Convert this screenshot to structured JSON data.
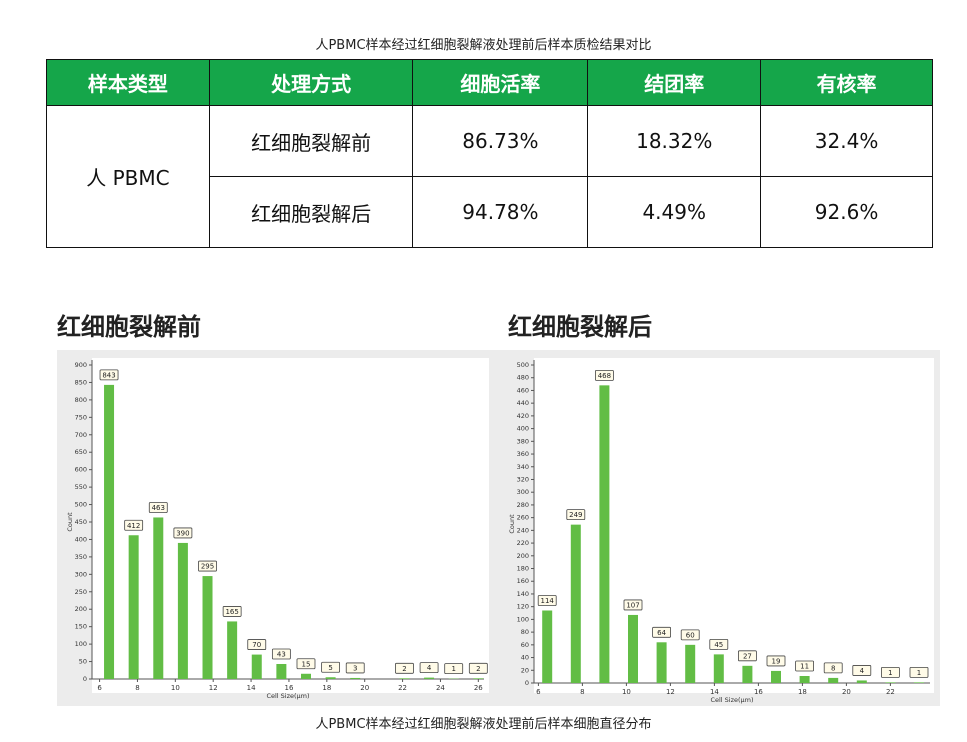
{
  "title": "人PBMC样本经过红细胞裂解液处理前后样本质检结果对比",
  "table": {
    "header": [
      "样本类型",
      "处理方式",
      "细胞活率",
      "结团率",
      "有核率"
    ],
    "sample": "人 PBMC",
    "rows": [
      [
        "红细胞裂解前",
        "86.73%",
        "18.32%",
        "32.4%"
      ],
      [
        "红细胞裂解后",
        "94.78%",
        "4.49%",
        "92.6%"
      ]
    ]
  },
  "chart_data": [
    {
      "type": "bar",
      "title": "红细胞裂解前",
      "xlabel": "Cell Size(μm)",
      "ylabel": "Count",
      "color": "#62bd45",
      "x": [
        6.5,
        7.8,
        9.1,
        10.4,
        11.7,
        13.0,
        14.3,
        15.6,
        16.9,
        18.2,
        19.5,
        22.1,
        23.4,
        24.7,
        26.0
      ],
      "values": [
        843,
        412,
        463,
        390,
        295,
        165,
        70,
        43,
        15,
        5,
        3,
        2,
        4,
        1,
        2
      ],
      "xlim": [
        5.6,
        26.3
      ],
      "xticks": [
        6,
        8,
        10,
        12,
        14,
        16,
        18,
        20,
        22,
        24,
        26
      ],
      "ylim": [
        0,
        900
      ],
      "yticks": [
        0,
        50,
        100,
        150,
        200,
        250,
        300,
        350,
        400,
        450,
        500,
        550,
        600,
        650,
        700,
        750,
        800,
        850,
        900
      ],
      "grid": false
    },
    {
      "type": "bar",
      "title": "红细胞裂解后",
      "xlabel": "Cell Size(μm)",
      "ylabel": "Count",
      "color": "#62bd45",
      "x": [
        6.4,
        7.7,
        9.0,
        10.3,
        11.6,
        12.9,
        14.2,
        15.5,
        16.8,
        18.1,
        19.4,
        20.7,
        22.0,
        23.3
      ],
      "values": [
        114,
        249,
        468,
        107,
        64,
        60,
        45,
        27,
        19,
        11,
        8,
        4,
        1,
        1
      ],
      "xlim": [
        5.8,
        23.8
      ],
      "xticks": [
        6,
        8,
        10,
        12,
        14,
        16,
        18,
        20,
        22
      ],
      "ylim": [
        0,
        500
      ],
      "yticks": [
        0,
        20,
        40,
        60,
        80,
        100,
        120,
        140,
        160,
        180,
        200,
        220,
        240,
        260,
        280,
        300,
        320,
        340,
        360,
        380,
        400,
        420,
        440,
        460,
        480,
        500
      ],
      "grid": false
    }
  ],
  "caption": "人PBMC样本经过红细胞裂解液处理前后样本细胞直径分布"
}
